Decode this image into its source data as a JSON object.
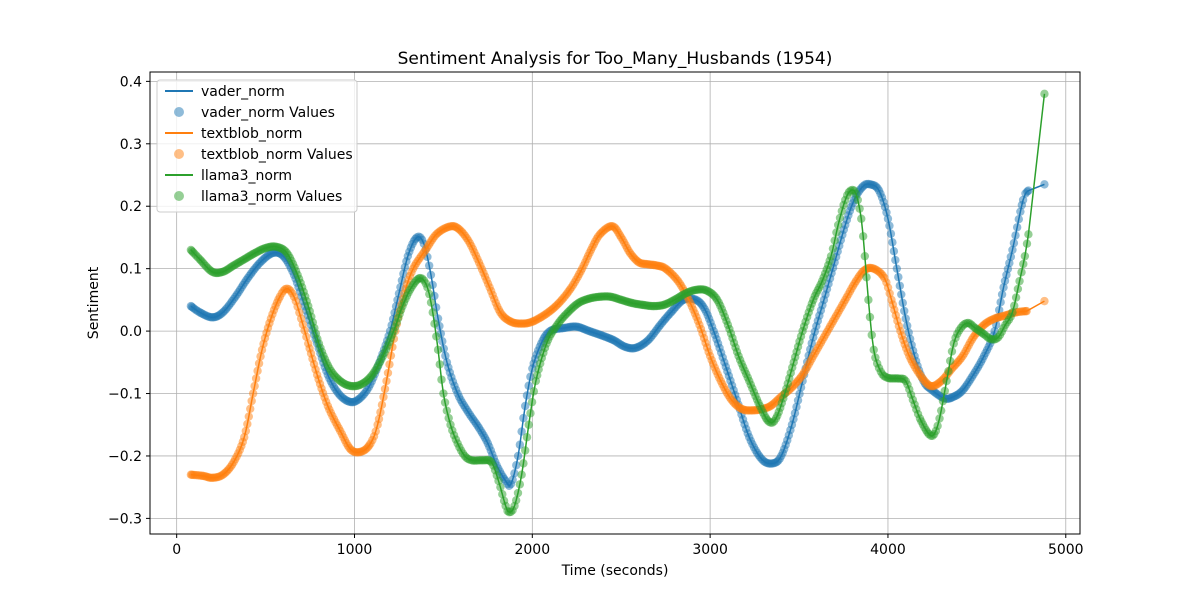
{
  "chart_data": {
    "type": "line",
    "title": "Sentiment Analysis for Too_Many_Husbands (1954)",
    "xlabel": "Time (seconds)",
    "ylabel": "Sentiment",
    "xlim": [
      -150,
      5080
    ],
    "ylim": [
      -0.325,
      0.415
    ],
    "xticks": [
      0,
      1000,
      2000,
      3000,
      4000,
      5000
    ],
    "yticks": [
      -0.3,
      -0.2,
      -0.1,
      0.0,
      0.1,
      0.2,
      0.3,
      0.4
    ],
    "ytick_labels": [
      "−0.3",
      "−0.2",
      "−0.1",
      "0.0",
      "0.1",
      "0.2",
      "0.3",
      "0.4"
    ],
    "grid": true,
    "legend_position": "top-left",
    "series": [
      {
        "name": "vader_norm",
        "values_name": "vader_norm Values",
        "color": "#1f77b4",
        "points": [
          [
            80,
            0.04
          ],
          [
            130,
            0.03
          ],
          [
            200,
            0.022
          ],
          [
            260,
            0.03
          ],
          [
            330,
            0.055
          ],
          [
            400,
            0.085
          ],
          [
            470,
            0.11
          ],
          [
            540,
            0.125
          ],
          [
            600,
            0.12
          ],
          [
            660,
            0.09
          ],
          [
            720,
            0.04
          ],
          [
            790,
            -0.02
          ],
          [
            850,
            -0.07
          ],
          [
            910,
            -0.1
          ],
          [
            970,
            -0.113
          ],
          [
            1020,
            -0.11
          ],
          [
            1080,
            -0.09
          ],
          [
            1140,
            -0.05
          ],
          [
            1200,
            0.0
          ],
          [
            1250,
            0.06
          ],
          [
            1300,
            0.12
          ],
          [
            1350,
            0.15
          ],
          [
            1390,
            0.14
          ],
          [
            1430,
            0.09
          ],
          [
            1470,
            0.02
          ],
          [
            1520,
            -0.05
          ],
          [
            1580,
            -0.1
          ],
          [
            1640,
            -0.13
          ],
          [
            1700,
            -0.155
          ],
          [
            1750,
            -0.18
          ],
          [
            1800,
            -0.215
          ],
          [
            1850,
            -0.24
          ],
          [
            1880,
            -0.245
          ],
          [
            1920,
            -0.2
          ],
          [
            1960,
            -0.12
          ],
          [
            2000,
            -0.06
          ],
          [
            2050,
            -0.02
          ],
          [
            2100,
            0.0
          ],
          [
            2180,
            0.005
          ],
          [
            2250,
            0.007
          ],
          [
            2320,
            0.0
          ],
          [
            2400,
            -0.008
          ],
          [
            2460,
            -0.015
          ],
          [
            2520,
            -0.025
          ],
          [
            2580,
            -0.027
          ],
          [
            2650,
            -0.015
          ],
          [
            2720,
            0.01
          ],
          [
            2780,
            0.03
          ],
          [
            2850,
            0.05
          ],
          [
            2920,
            0.05
          ],
          [
            2970,
            0.035
          ],
          [
            3020,
            0.0
          ],
          [
            3080,
            -0.05
          ],
          [
            3150,
            -0.11
          ],
          [
            3220,
            -0.17
          ],
          [
            3290,
            -0.205
          ],
          [
            3350,
            -0.212
          ],
          [
            3400,
            -0.2
          ],
          [
            3460,
            -0.15
          ],
          [
            3520,
            -0.08
          ],
          [
            3580,
            -0.01
          ],
          [
            3640,
            0.05
          ],
          [
            3700,
            0.11
          ],
          [
            3760,
            0.17
          ],
          [
            3810,
            0.21
          ],
          [
            3860,
            0.232
          ],
          [
            3900,
            0.235
          ],
          [
            3950,
            0.225
          ],
          [
            4000,
            0.18
          ],
          [
            4050,
            0.1
          ],
          [
            4100,
            0.02
          ],
          [
            4150,
            -0.04
          ],
          [
            4200,
            -0.08
          ],
          [
            4250,
            -0.095
          ],
          [
            4320,
            -0.108
          ],
          [
            4370,
            -0.105
          ],
          [
            4420,
            -0.095
          ],
          [
            4480,
            -0.07
          ],
          [
            4540,
            -0.04
          ],
          [
            4600,
            0.0
          ],
          [
            4650,
            0.07
          ],
          [
            4700,
            0.13
          ],
          [
            4760,
            0.21
          ],
          [
            4790,
            0.225
          ],
          [
            4880,
            0.235
          ]
        ]
      },
      {
        "name": "textblob_norm",
        "values_name": "textblob_norm Values",
        "color": "#ff7f0e",
        "points": [
          [
            80,
            -0.23
          ],
          [
            150,
            -0.232
          ],
          [
            200,
            -0.235
          ],
          [
            260,
            -0.23
          ],
          [
            320,
            -0.21
          ],
          [
            380,
            -0.17
          ],
          [
            430,
            -0.1
          ],
          [
            480,
            -0.03
          ],
          [
            530,
            0.02
          ],
          [
            580,
            0.055
          ],
          [
            620,
            0.068
          ],
          [
            660,
            0.055
          ],
          [
            700,
            0.02
          ],
          [
            740,
            -0.02
          ],
          [
            790,
            -0.07
          ],
          [
            850,
            -0.12
          ],
          [
            920,
            -0.16
          ],
          [
            980,
            -0.19
          ],
          [
            1040,
            -0.193
          ],
          [
            1090,
            -0.18
          ],
          [
            1130,
            -0.15
          ],
          [
            1180,
            -0.08
          ],
          [
            1230,
            0.0
          ],
          [
            1280,
            0.06
          ],
          [
            1330,
            0.1
          ],
          [
            1400,
            0.13
          ],
          [
            1460,
            0.155
          ],
          [
            1530,
            0.167
          ],
          [
            1580,
            0.165
          ],
          [
            1640,
            0.145
          ],
          [
            1700,
            0.11
          ],
          [
            1760,
            0.07
          ],
          [
            1820,
            0.03
          ],
          [
            1880,
            0.015
          ],
          [
            1940,
            0.012
          ],
          [
            2000,
            0.015
          ],
          [
            2080,
            0.028
          ],
          [
            2150,
            0.045
          ],
          [
            2220,
            0.07
          ],
          [
            2280,
            0.1
          ],
          [
            2330,
            0.13
          ],
          [
            2380,
            0.155
          ],
          [
            2450,
            0.168
          ],
          [
            2500,
            0.15
          ],
          [
            2550,
            0.125
          ],
          [
            2600,
            0.11
          ],
          [
            2650,
            0.107
          ],
          [
            2700,
            0.105
          ],
          [
            2750,
            0.1
          ],
          [
            2820,
            0.08
          ],
          [
            2880,
            0.05
          ],
          [
            2940,
            0.01
          ],
          [
            3000,
            -0.04
          ],
          [
            3060,
            -0.08
          ],
          [
            3120,
            -0.11
          ],
          [
            3180,
            -0.125
          ],
          [
            3240,
            -0.127
          ],
          [
            3290,
            -0.125
          ],
          [
            3340,
            -0.12
          ],
          [
            3400,
            -0.105
          ],
          [
            3460,
            -0.09
          ],
          [
            3520,
            -0.07
          ],
          [
            3580,
            -0.04
          ],
          [
            3640,
            -0.01
          ],
          [
            3700,
            0.02
          ],
          [
            3760,
            0.05
          ],
          [
            3820,
            0.08
          ],
          [
            3870,
            0.098
          ],
          [
            3920,
            0.1
          ],
          [
            3980,
            0.085
          ],
          [
            4020,
            0.05
          ],
          [
            4070,
            0.0
          ],
          [
            4120,
            -0.04
          ],
          [
            4180,
            -0.07
          ],
          [
            4240,
            -0.088
          ],
          [
            4300,
            -0.08
          ],
          [
            4360,
            -0.06
          ],
          [
            4420,
            -0.04
          ],
          [
            4480,
            -0.01
          ],
          [
            4540,
            0.01
          ],
          [
            4600,
            0.02
          ],
          [
            4660,
            0.025
          ],
          [
            4720,
            0.03
          ],
          [
            4780,
            0.032
          ],
          [
            4880,
            0.048
          ]
        ]
      },
      {
        "name": "llama3_norm",
        "values_name": "llama3_norm Values",
        "color": "#2ca02c",
        "points": [
          [
            80,
            0.13
          ],
          [
            130,
            0.115
          ],
          [
            200,
            0.095
          ],
          [
            260,
            0.095
          ],
          [
            320,
            0.105
          ],
          [
            380,
            0.115
          ],
          [
            440,
            0.125
          ],
          [
            500,
            0.133
          ],
          [
            560,
            0.135
          ],
          [
            620,
            0.125
          ],
          [
            680,
            0.09
          ],
          [
            740,
            0.04
          ],
          [
            800,
            -0.02
          ],
          [
            860,
            -0.06
          ],
          [
            920,
            -0.08
          ],
          [
            980,
            -0.088
          ],
          [
            1040,
            -0.085
          ],
          [
            1100,
            -0.07
          ],
          [
            1160,
            -0.04
          ],
          [
            1220,
            0.0
          ],
          [
            1270,
            0.04
          ],
          [
            1320,
            0.07
          ],
          [
            1370,
            0.085
          ],
          [
            1410,
            0.07
          ],
          [
            1440,
            0.03
          ],
          [
            1470,
            -0.03
          ],
          [
            1500,
            -0.1
          ],
          [
            1540,
            -0.15
          ],
          [
            1580,
            -0.18
          ],
          [
            1620,
            -0.2
          ],
          [
            1660,
            -0.207
          ],
          [
            1720,
            -0.207
          ],
          [
            1770,
            -0.21
          ],
          [
            1810,
            -0.24
          ],
          [
            1850,
            -0.28
          ],
          [
            1870,
            -0.29
          ],
          [
            1900,
            -0.28
          ],
          [
            1940,
            -0.23
          ],
          [
            1980,
            -0.15
          ],
          [
            2020,
            -0.08
          ],
          [
            2080,
            -0.02
          ],
          [
            2140,
            0.01
          ],
          [
            2200,
            0.03
          ],
          [
            2260,
            0.045
          ],
          [
            2320,
            0.052
          ],
          [
            2380,
            0.055
          ],
          [
            2440,
            0.055
          ],
          [
            2500,
            0.05
          ],
          [
            2560,
            0.045
          ],
          [
            2620,
            0.042
          ],
          [
            2680,
            0.04
          ],
          [
            2740,
            0.042
          ],
          [
            2800,
            0.05
          ],
          [
            2860,
            0.06
          ],
          [
            2920,
            0.066
          ],
          [
            2980,
            0.065
          ],
          [
            3040,
            0.05
          ],
          [
            3100,
            0.01
          ],
          [
            3160,
            -0.04
          ],
          [
            3220,
            -0.08
          ],
          [
            3280,
            -0.12
          ],
          [
            3330,
            -0.145
          ],
          [
            3370,
            -0.14
          ],
          [
            3420,
            -0.1
          ],
          [
            3470,
            -0.05
          ],
          [
            3520,
            0.0
          ],
          [
            3580,
            0.05
          ],
          [
            3630,
            0.08
          ],
          [
            3680,
            0.12
          ],
          [
            3720,
            0.17
          ],
          [
            3760,
            0.21
          ],
          [
            3790,
            0.225
          ],
          [
            3820,
            0.22
          ],
          [
            3850,
            0.18
          ],
          [
            3870,
            0.12
          ],
          [
            3890,
            0.05
          ],
          [
            3920,
            -0.03
          ],
          [
            3960,
            -0.065
          ],
          [
            4000,
            -0.075
          ],
          [
            4060,
            -0.076
          ],
          [
            4100,
            -0.08
          ],
          [
            4140,
            -0.11
          ],
          [
            4180,
            -0.14
          ],
          [
            4230,
            -0.165
          ],
          [
            4260,
            -0.165
          ],
          [
            4290,
            -0.14
          ],
          [
            4330,
            -0.08
          ],
          [
            4370,
            -0.02
          ],
          [
            4410,
            0.005
          ],
          [
            4450,
            0.013
          ],
          [
            4490,
            0.005
          ],
          [
            4540,
            -0.005
          ],
          [
            4580,
            -0.013
          ],
          [
            4620,
            -0.01
          ],
          [
            4660,
            0.01
          ],
          [
            4700,
            0.03
          ],
          [
            4740,
            0.08
          ],
          [
            4770,
            0.12
          ],
          [
            4790,
            0.155
          ],
          [
            4880,
            0.38
          ]
        ]
      }
    ]
  }
}
